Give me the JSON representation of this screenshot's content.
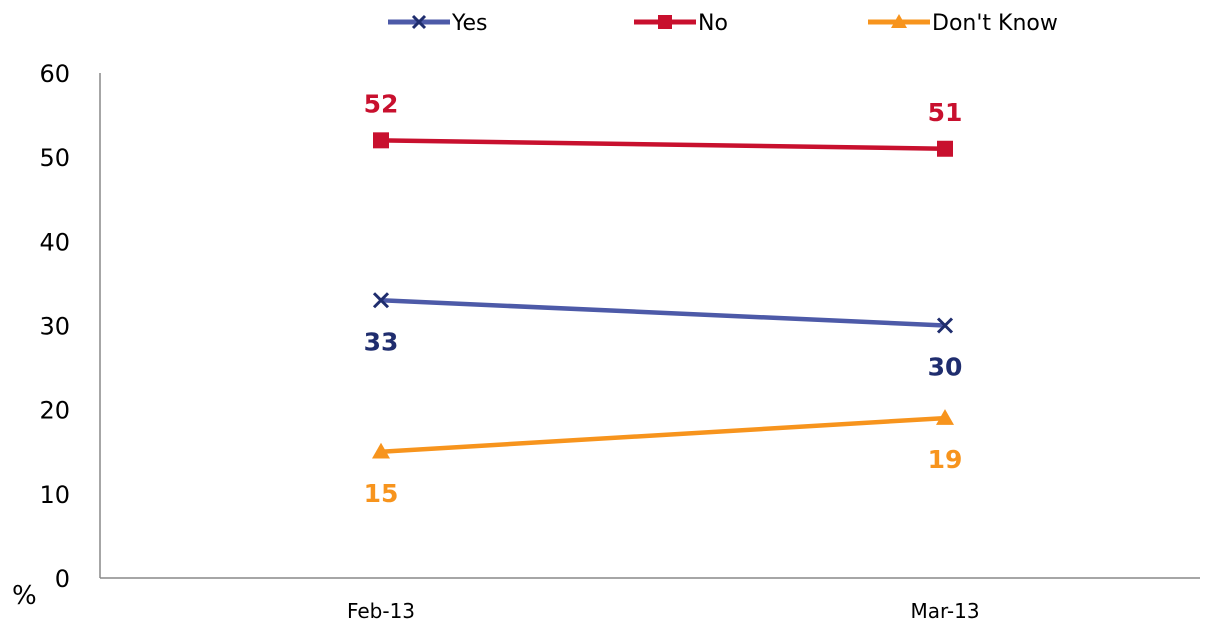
{
  "chart_data": {
    "type": "line",
    "categories": [
      "Feb-13",
      "Mar-13"
    ],
    "series": [
      {
        "name": "Yes",
        "values": [
          33,
          30
        ],
        "color": "#4d5aa8",
        "label_color": "#1f2d6e",
        "marker": "x"
      },
      {
        "name": "No",
        "values": [
          52,
          51
        ],
        "color": "#c8102e",
        "label_color": "#c8102e",
        "marker": "square"
      },
      {
        "name": "Don't Know",
        "values": [
          15,
          19
        ],
        "color": "#f7941d",
        "label_color": "#f7941d",
        "marker": "triangle"
      }
    ],
    "y_ticks": [
      "0",
      "10",
      "20",
      "30",
      "40",
      "50",
      "60"
    ],
    "ylim": [
      0,
      60
    ],
    "ylabel": "%",
    "xlabel": "",
    "title": "",
    "grid": false,
    "legend_position": "top-center"
  }
}
